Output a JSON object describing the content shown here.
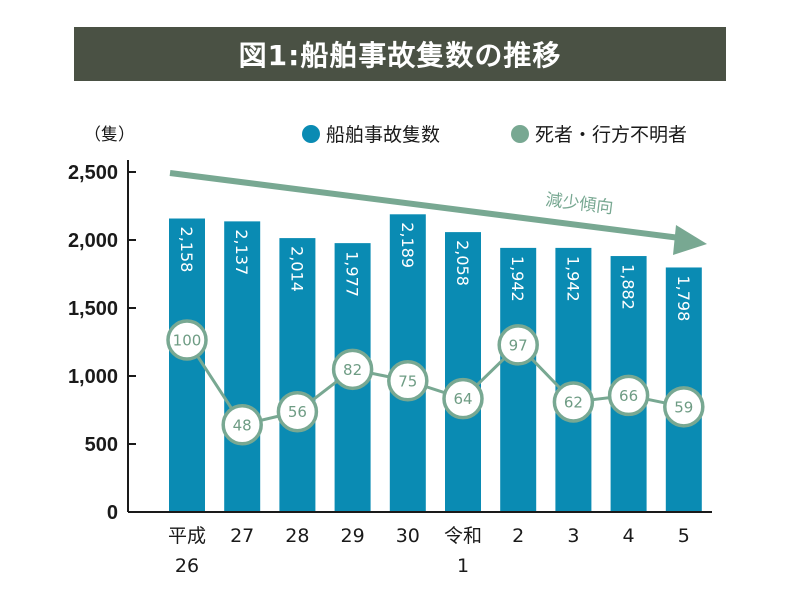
{
  "title": "図1:船舶事故隻数の推移",
  "chart_data": {
    "type": "bar",
    "title": "図1:船舶事故隻数の推移",
    "ylabel": "（隻）",
    "xlabel": "",
    "ylim": [
      0,
      2500
    ],
    "yticks": [
      {
        "value": 0,
        "label": "0"
      },
      {
        "value": 500,
        "label": "500"
      },
      {
        "value": 1000,
        "label": "1,000"
      },
      {
        "value": 1500,
        "label": "1,500"
      },
      {
        "value": 2000,
        "label": "2,000"
      },
      {
        "value": 2500,
        "label": "2,500"
      }
    ],
    "categories": [
      {
        "line1": "平成",
        "line2": "26"
      },
      {
        "line1": "27",
        "line2": ""
      },
      {
        "line1": "28",
        "line2": ""
      },
      {
        "line1": "29",
        "line2": ""
      },
      {
        "line1": "30",
        "line2": ""
      },
      {
        "line1": "令和",
        "line2": "1"
      },
      {
        "line1": "2",
        "line2": ""
      },
      {
        "line1": "3",
        "line2": ""
      },
      {
        "line1": "4",
        "line2": ""
      },
      {
        "line1": "5",
        "line2": ""
      }
    ],
    "series": [
      {
        "name": "船舶事故隻数",
        "type": "bar",
        "color": "#0a8bb3",
        "values": [
          2158,
          2137,
          2014,
          1977,
          2189,
          2058,
          1942,
          1942,
          1882,
          1798
        ],
        "labels": [
          "2,158",
          "2,137",
          "2,014",
          "1,977",
          "2,189",
          "2,058",
          "1,942",
          "1,942",
          "1,882",
          "1,798"
        ]
      },
      {
        "name": "死者・行方不明者",
        "type": "line",
        "color": "#78a892",
        "values": [
          100,
          48,
          56,
          82,
          75,
          64,
          97,
          62,
          66,
          59
        ],
        "labels": [
          "100",
          "48",
          "56",
          "82",
          "75",
          "64",
          "97",
          "62",
          "66",
          "59"
        ]
      }
    ],
    "legend": {
      "position": "top-right",
      "items": [
        "船舶事故隻数",
        "死者・行方不明者"
      ]
    },
    "annotation": {
      "text": "減少傾向",
      "type": "trend-arrow",
      "color": "#78a892"
    },
    "grid": false
  }
}
